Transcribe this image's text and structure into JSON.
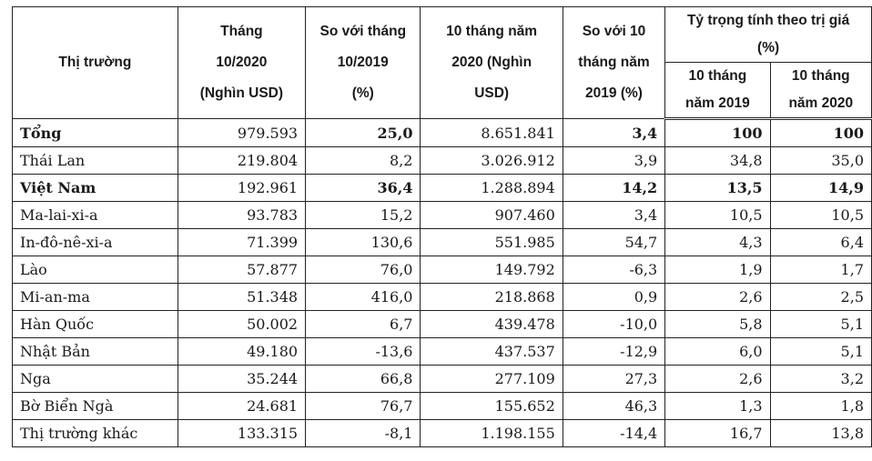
{
  "header": {
    "market": "Thị trường",
    "month_value": [
      "Tháng",
      "10/2020",
      "(Nghìn USD)"
    ],
    "vs_month": [
      "So với tháng",
      "10/2019",
      "(%)"
    ],
    "ten_month_value": [
      "10 tháng năm",
      "2020 (Nghìn",
      "USD)"
    ],
    "vs_ten_month": [
      "So với 10",
      "tháng năm",
      "2019 (%)"
    ],
    "share": [
      "Tỷ trọng tính theo trị giá",
      "(%)"
    ],
    "share_2019": [
      "10 tháng",
      "năm 2019"
    ],
    "share_2020": [
      "10 tháng",
      "năm 2020"
    ]
  },
  "rows": [
    {
      "name": "Tổng",
      "m10": "979.593",
      "vs_m10": "25,0",
      "t10": "8.651.841",
      "vs_t10": "3,4",
      "s2019": "100",
      "s2020": "100"
    },
    {
      "name": "Thái Lan",
      "m10": "219.804",
      "vs_m10": "8,2",
      "t10": "3.026.912",
      "vs_t10": "3,9",
      "s2019": "34,8",
      "s2020": "35,0"
    },
    {
      "name": "Việt Nam",
      "m10": "192.961",
      "vs_m10": "36,4",
      "t10": "1.288.894",
      "vs_t10": "14,2",
      "s2019": "13,5",
      "s2020": "14,9"
    },
    {
      "name": "Ma-lai-xi-a",
      "m10": "93.783",
      "vs_m10": "15,2",
      "t10": "907.460",
      "vs_t10": "3,4",
      "s2019": "10,5",
      "s2020": "10,5"
    },
    {
      "name": "In-đô-nê-xi-a",
      "m10": "71.399",
      "vs_m10": "130,6",
      "t10": "551.985",
      "vs_t10": "54,7",
      "s2019": "4,3",
      "s2020": "6,4"
    },
    {
      "name": "Lào",
      "m10": "57.877",
      "vs_m10": "76,0",
      "t10": "149.792",
      "vs_t10": "-6,3",
      "s2019": "1,9",
      "s2020": "1,7"
    },
    {
      "name": "Mi-an-ma",
      "m10": "51.348",
      "vs_m10": "416,0",
      "t10": "218.868",
      "vs_t10": "0,9",
      "s2019": "2,6",
      "s2020": "2,5"
    },
    {
      "name": "Hàn Quốc",
      "m10": "50.002",
      "vs_m10": "6,7",
      "t10": "439.478",
      "vs_t10": "-10,0",
      "s2019": "5,8",
      "s2020": "5,1"
    },
    {
      "name": "Nhật Bản",
      "m10": "49.180",
      "vs_m10": "-13,6",
      "t10": "437.537",
      "vs_t10": "-12,9",
      "s2019": "6,0",
      "s2020": "5,1"
    },
    {
      "name": "Nga",
      "m10": "35.244",
      "vs_m10": "66,8",
      "t10": "277.109",
      "vs_t10": "27,3",
      "s2019": "2,6",
      "s2020": "3,2"
    },
    {
      "name": "Bờ Biển Ngà",
      "m10": "24.681",
      "vs_m10": "76,7",
      "t10": "155.652",
      "vs_t10": "46,3",
      "s2019": "1,3",
      "s2020": "1,8"
    },
    {
      "name": "Thị trường khác",
      "m10": "133.315",
      "vs_m10": "-8,1",
      "t10": "1.198.155",
      "vs_t10": "-14,4",
      "s2019": "16,7",
      "s2020": "13,8"
    }
  ]
}
